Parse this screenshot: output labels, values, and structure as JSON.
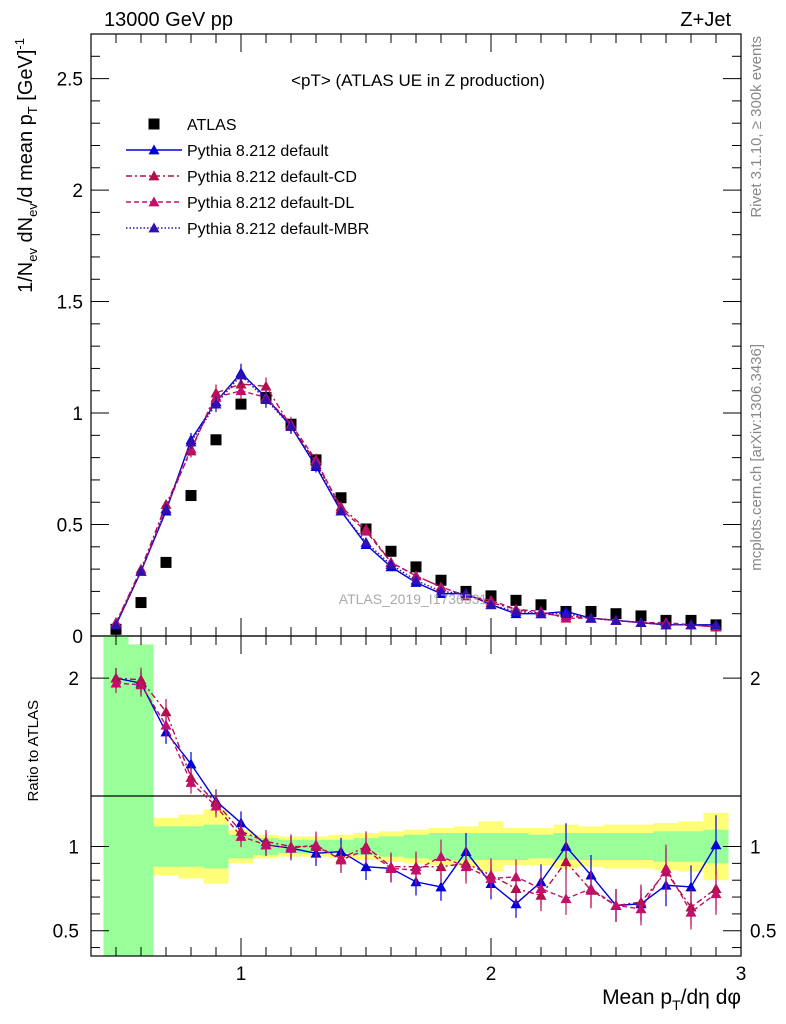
{
  "header": {
    "energy": "13000 GeV pp",
    "process": "Z+Jet",
    "plot_title": "<pT> (ATLAS UE in Z production)",
    "watermark": "ATLAS_2019_I1736531",
    "rivet": "Rivet 3.1.10, ≥ 300k events",
    "mcplots": "mcplots.cern.ch [arXiv:1306.3436]"
  },
  "chart_data": [
    {
      "type": "scatter",
      "panel": "main",
      "ylabel": "1/N_ev dN_ev/d mean p_T [GeV]^-1",
      "xlim": [
        0.4,
        3.0
      ],
      "ylim": [
        0,
        2.7
      ],
      "yticks": [
        0,
        0.5,
        1,
        1.5,
        2,
        2.5
      ],
      "ytick_labels": [
        "0",
        "0.5",
        "1",
        "1.5",
        "2",
        "2.5"
      ],
      "legend_position": "top-left",
      "x": [
        0.5,
        0.6,
        0.7,
        0.8,
        0.9,
        1.0,
        1.1,
        1.2,
        1.3,
        1.4,
        1.5,
        1.6,
        1.7,
        1.8,
        1.9,
        2.0,
        2.1,
        2.2,
        2.3,
        2.4,
        2.5,
        2.6,
        2.7,
        2.8,
        2.9
      ],
      "series": [
        {
          "name": "ATLAS",
          "marker": "square",
          "color": "#000000",
          "values": [
            0.03,
            0.15,
            0.33,
            0.63,
            0.88,
            1.04,
            1.07,
            0.95,
            0.79,
            0.62,
            0.48,
            0.38,
            0.31,
            0.25,
            0.2,
            0.18,
            0.16,
            0.14,
            0.11,
            0.11,
            0.1,
            0.09,
            0.07,
            0.07,
            0.05
          ]
        },
        {
          "name": "Pythia 8.212 default",
          "marker": "triangle",
          "line": "solid",
          "color": "#0000dd",
          "values": [
            0.05,
            0.29,
            0.56,
            0.88,
            1.05,
            1.18,
            1.07,
            0.94,
            0.76,
            0.56,
            0.41,
            0.31,
            0.24,
            0.19,
            0.19,
            0.14,
            0.1,
            0.1,
            0.11,
            0.08,
            0.07,
            0.06,
            0.05,
            0.05,
            0.05
          ]
        },
        {
          "name": "Pythia 8.212 default-CD",
          "marker": "triangle",
          "line": "dashdot",
          "color": "#b0104a",
          "values": [
            0.06,
            0.3,
            0.59,
            0.83,
            1.09,
            1.13,
            1.12,
            0.94,
            0.78,
            0.58,
            0.48,
            0.33,
            0.27,
            0.22,
            0.18,
            0.15,
            0.12,
            0.1,
            0.09,
            0.08,
            0.07,
            0.06,
            0.05,
            0.05,
            0.04
          ]
        },
        {
          "name": "Pythia 8.212 default-DL",
          "marker": "triangle",
          "line": "dashed",
          "color": "#c0106a",
          "values": [
            0.06,
            0.29,
            0.57,
            0.84,
            1.07,
            1.1,
            1.07,
            0.95,
            0.79,
            0.57,
            0.47,
            0.33,
            0.27,
            0.22,
            0.18,
            0.16,
            0.12,
            0.11,
            0.08,
            0.08,
            0.07,
            0.06,
            0.06,
            0.05,
            0.04
          ]
        },
        {
          "name": "Pythia 8.212 default-MBR",
          "marker": "triangle",
          "line": "dotted",
          "color": "#3010b0",
          "values": [
            0.05,
            0.29,
            0.57,
            0.87,
            1.04,
            1.17,
            1.06,
            0.94,
            0.77,
            0.56,
            0.42,
            0.32,
            0.25,
            0.2,
            0.19,
            0.14,
            0.11,
            0.1,
            0.1,
            0.08,
            0.07,
            0.06,
            0.05,
            0.05,
            0.05
          ]
        }
      ]
    },
    {
      "type": "line",
      "panel": "ratio",
      "xlabel": "Mean p_T/dη dφ",
      "ylabel": "Ratio to ATLAS",
      "xlim": [
        0.4,
        3.0
      ],
      "ylim": [
        0.35,
        2.25
      ],
      "xticks": [
        1,
        2,
        3
      ],
      "xtick_labels": [
        "1",
        "2",
        "3"
      ],
      "yticks": [
        0.5,
        1,
        2
      ],
      "ytick_labels": [
        "0.5",
        "1",
        "2"
      ],
      "x": [
        0.5,
        0.6,
        0.7,
        0.8,
        0.9,
        1.0,
        1.1,
        1.2,
        1.3,
        1.4,
        1.5,
        1.6,
        1.7,
        1.8,
        1.9,
        2.0,
        2.1,
        2.2,
        2.3,
        2.4,
        2.5,
        2.6,
        2.7,
        2.8,
        2.9
      ],
      "bands": {
        "edges": [
          0.45,
          0.55,
          0.65,
          0.75,
          0.85,
          0.95,
          1.05,
          1.15,
          1.25,
          1.35,
          1.45,
          1.55,
          1.65,
          1.75,
          1.85,
          1.95,
          2.05,
          2.15,
          2.25,
          2.35,
          2.45,
          2.55,
          2.65,
          2.75,
          2.85,
          2.95
        ],
        "green_colour": "#99ff99",
        "yellow_colour": "#ffff77",
        "green_half": [
          1.6,
          1.2,
          0.12,
          0.12,
          0.13,
          0.07,
          0.05,
          0.04,
          0.04,
          0.04,
          0.05,
          0.06,
          0.07,
          0.08,
          0.08,
          0.08,
          0.08,
          0.07,
          0.08,
          0.08,
          0.08,
          0.08,
          0.09,
          0.09,
          0.1
        ],
        "yellow_half": [
          2.3,
          1.2,
          0.17,
          0.19,
          0.22,
          0.1,
          0.07,
          0.06,
          0.06,
          0.07,
          0.08,
          0.09,
          0.1,
          0.11,
          0.12,
          0.15,
          0.11,
          0.11,
          0.13,
          0.12,
          0.13,
          0.13,
          0.14,
          0.15,
          0.2
        ]
      },
      "series": [
        {
          "name": "Pythia 8.212 default",
          "color": "#0000dd",
          "values": [
            2.0,
            1.97,
            1.68,
            1.49,
            1.27,
            1.14,
            1.01,
            0.99,
            0.96,
            0.97,
            0.88,
            0.87,
            0.79,
            0.76,
            0.97,
            0.78,
            0.66,
            0.79,
            1.0,
            0.83,
            0.65,
            0.66,
            0.77,
            0.76,
            1.01
          ]
        },
        {
          "name": "Pythia 8.212 default-CD",
          "color": "#b0104a",
          "values": [
            2.0,
            1.99,
            1.8,
            1.41,
            1.26,
            1.09,
            1.03,
            1.0,
            1.0,
            0.93,
            1.0,
            0.88,
            0.88,
            0.88,
            0.9,
            0.83,
            0.75,
            0.71,
            0.91,
            0.74,
            0.65,
            0.67,
            0.85,
            0.64,
            0.75
          ]
        },
        {
          "name": "Pythia 8.212 default-DL",
          "color": "#c0106a",
          "values": [
            1.97,
            1.96,
            1.72,
            1.38,
            1.24,
            1.06,
            1.01,
            0.99,
            1.01,
            0.92,
            0.98,
            0.87,
            0.86,
            0.94,
            0.88,
            0.81,
            0.82,
            0.75,
            0.69,
            0.75,
            0.65,
            0.63,
            0.87,
            0.61,
            0.72
          ]
        }
      ]
    }
  ]
}
